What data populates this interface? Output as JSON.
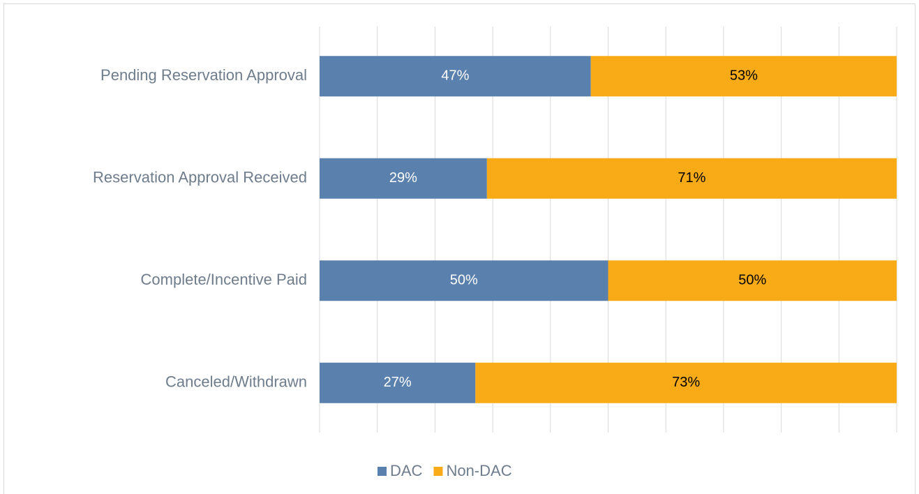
{
  "chart_data": {
    "type": "stacked-bar-horizontal",
    "categories": [
      "Pending Reservation Approval",
      "Reservation Approval Received",
      "Complete/Incentive Paid",
      "Canceled/Withdrawn"
    ],
    "series": [
      {
        "name": "DAC",
        "color": "#5a80ad",
        "values": [
          47,
          29,
          50,
          27
        ],
        "value_labels": [
          "47%",
          "29%",
          "50%",
          "27%"
        ]
      },
      {
        "name": "Non-DAC",
        "color": "#f9ab17",
        "values": [
          53,
          71,
          50,
          73
        ],
        "value_labels": [
          "53%",
          "71%",
          "50%",
          "73%"
        ]
      }
    ],
    "xlim": [
      0,
      100
    ],
    "xticks": [
      0,
      10,
      20,
      30,
      40,
      50,
      60,
      70,
      80,
      90,
      100
    ],
    "grid": true,
    "legend": "bottom"
  }
}
